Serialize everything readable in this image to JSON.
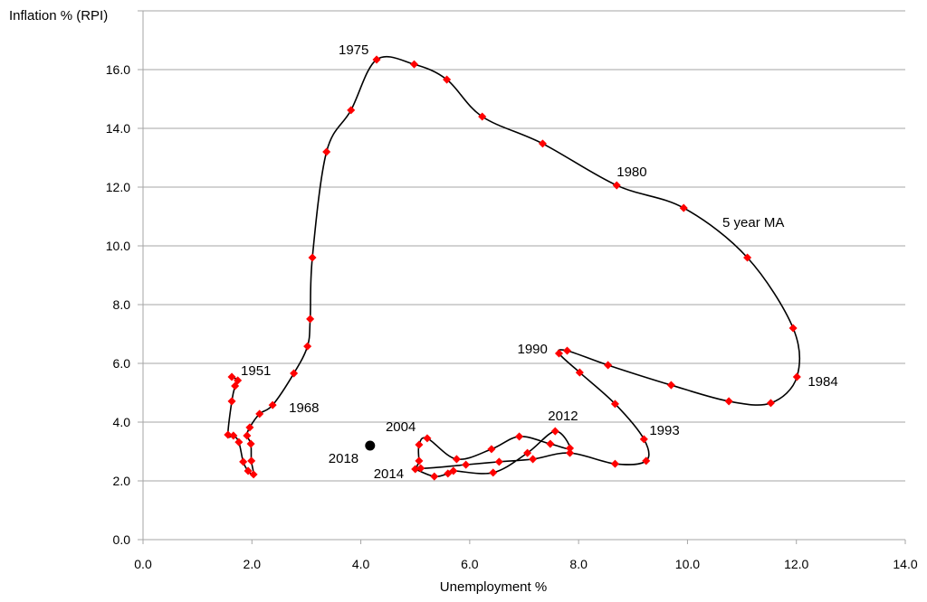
{
  "chart_data": {
    "type": "line",
    "title": "",
    "xlabel": "Unemployment %",
    "ylabel": "Inflation % (RPI)",
    "xlim": [
      0,
      14
    ],
    "ylim": [
      0,
      18
    ],
    "grid": "horizontal",
    "x_ticks": [
      "0.0",
      "2.0",
      "4.0",
      "6.0",
      "8.0",
      "10.0",
      "12.0",
      "14.0"
    ],
    "y_ticks": [
      "0.0",
      "2.0",
      "4.0",
      "6.0",
      "8.0",
      "10.0",
      "12.0",
      "14.0",
      "16.0"
    ],
    "series_label": "5 year MA",
    "line_color": "#000000",
    "marker_color": "#ff0000",
    "points": [
      [
        1.63,
        5.54
      ],
      [
        1.74,
        5.42
      ],
      [
        1.69,
        5.23
      ],
      [
        1.63,
        4.71
      ],
      [
        1.56,
        3.57
      ],
      [
        1.66,
        3.54
      ],
      [
        1.76,
        3.32
      ],
      [
        1.84,
        2.65
      ],
      [
        1.93,
        2.34
      ],
      [
        2.03,
        2.22
      ],
      [
        1.99,
        2.68
      ],
      [
        1.98,
        3.26
      ],
      [
        1.91,
        3.54
      ],
      [
        1.96,
        3.82
      ],
      [
        2.14,
        4.28
      ],
      [
        2.38,
        4.58
      ],
      [
        2.77,
        5.66
      ],
      [
        3.02,
        6.58
      ],
      [
        3.07,
        7.51
      ],
      [
        3.11,
        9.6
      ],
      [
        3.37,
        13.2
      ],
      [
        3.82,
        14.62
      ],
      [
        4.29,
        16.34
      ],
      [
        4.98,
        16.18
      ],
      [
        5.58,
        15.66
      ],
      [
        6.23,
        14.4
      ],
      [
        7.34,
        13.48
      ],
      [
        8.7,
        12.06
      ],
      [
        9.93,
        11.29
      ],
      [
        11.1,
        9.6
      ],
      [
        11.94,
        7.2
      ],
      [
        12.01,
        5.54
      ],
      [
        11.53,
        4.65
      ],
      [
        10.76,
        4.71
      ],
      [
        9.7,
        5.26
      ],
      [
        8.54,
        5.94
      ],
      [
        7.79,
        6.43
      ],
      [
        7.64,
        6.34
      ],
      [
        8.02,
        5.69
      ],
      [
        8.67,
        4.62
      ],
      [
        9.2,
        3.42
      ],
      [
        9.24,
        2.68
      ],
      [
        8.67,
        2.58
      ],
      [
        7.84,
        2.95
      ],
      [
        7.16,
        2.74
      ],
      [
        6.54,
        2.65
      ],
      [
        5.93,
        2.55
      ],
      [
        5.1,
        2.43
      ],
      [
        5.07,
        2.68
      ],
      [
        5.07,
        3.23
      ],
      [
        5.22,
        3.45
      ],
      [
        5.76,
        2.74
      ],
      [
        6.4,
        3.08
      ],
      [
        6.91,
        3.51
      ],
      [
        7.48,
        3.26
      ],
      [
        7.84,
        3.11
      ],
      [
        7.57,
        3.69
      ],
      [
        7.06,
        2.95
      ],
      [
        6.43,
        2.28
      ],
      [
        5.7,
        2.34
      ],
      [
        5.6,
        2.25
      ],
      [
        5.35,
        2.15
      ],
      [
        5.0,
        2.4
      ]
    ],
    "highlight_point": {
      "label": "2018",
      "x": 4.17,
      "y": 3.2,
      "color": "#000000"
    },
    "year_labels": [
      {
        "text": "1951",
        "index": 0
      },
      {
        "text": "1968",
        "index": 15
      },
      {
        "text": "1975",
        "index": 22
      },
      {
        "text": "1980",
        "index": 27
      },
      {
        "text": "1984",
        "index": 31
      },
      {
        "text": "1990",
        "index": 37
      },
      {
        "text": "1993",
        "index": 40
      },
      {
        "text": "2004",
        "index": 50
      },
      {
        "text": "2012",
        "index": 56
      },
      {
        "text": "2014",
        "index": 62
      }
    ]
  }
}
